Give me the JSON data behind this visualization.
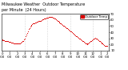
{
  "title_line1": "Milwaukee Weather  Outdoor Temperature",
  "title_line2": "per Minute  (24 Hours)",
  "x_values": [
    0,
    1,
    2,
    3,
    4,
    5,
    6,
    7,
    8,
    9,
    10,
    11,
    12,
    13,
    14,
    15,
    16,
    17,
    18,
    19,
    20,
    21,
    22,
    23,
    24,
    25,
    26,
    27,
    28,
    29,
    30,
    31,
    32,
    33,
    34,
    35,
    36,
    37,
    38,
    39,
    40,
    41,
    42,
    43,
    44,
    45,
    46,
    47,
    48,
    49,
    50,
    51,
    52,
    53,
    54,
    55,
    56,
    57,
    58,
    59,
    60,
    61,
    62,
    63,
    64,
    65,
    66,
    67,
    68,
    69,
    70,
    71,
    72,
    73,
    74,
    75,
    76,
    77,
    78,
    79,
    80,
    81,
    82,
    83,
    84,
    85,
    86,
    87,
    88,
    89,
    90,
    91,
    92,
    93,
    94,
    95,
    96,
    97,
    98,
    99,
    100,
    101,
    102,
    103,
    104,
    105,
    106,
    107,
    108,
    109,
    110,
    111,
    112,
    113,
    114,
    115,
    116,
    117,
    118,
    119,
    120,
    121,
    122,
    123,
    124,
    125,
    126,
    127,
    128,
    129,
    130,
    131,
    132,
    133,
    134,
    135,
    136,
    137,
    138,
    139
  ],
  "y_values": [
    28,
    27,
    27,
    27,
    26,
    26,
    25,
    25,
    25,
    24,
    24,
    24,
    23,
    23,
    23,
    22,
    22,
    22,
    22,
    21,
    21,
    21,
    21,
    22,
    22,
    23,
    24,
    25,
    26,
    28,
    30,
    33,
    36,
    39,
    42,
    45,
    47,
    49,
    51,
    52,
    53,
    54,
    55,
    55,
    56,
    56,
    57,
    57,
    58,
    58,
    59,
    59,
    60,
    61,
    61,
    62,
    62,
    63,
    63,
    64,
    64,
    64,
    65,
    65,
    65,
    65,
    65,
    64,
    64,
    63,
    62,
    61,
    60,
    59,
    58,
    57,
    56,
    55,
    54,
    53,
    52,
    51,
    50,
    49,
    48,
    47,
    46,
    45,
    44,
    43,
    42,
    41,
    40,
    39,
    38,
    37,
    36,
    35,
    34,
    33,
    32,
    31,
    30,
    29,
    28,
    27,
    26,
    25,
    24,
    23,
    22,
    21,
    20,
    21,
    22,
    23,
    24,
    25,
    26,
    27,
    28,
    29,
    30,
    31,
    30,
    29,
    28,
    27,
    26,
    25,
    24,
    23,
    22,
    21,
    20,
    19,
    18,
    18,
    17,
    17
  ],
  "dot_color": "#dd0000",
  "bg_color": "#ffffff",
  "legend_label": "Outdoor Temp",
  "legend_color": "#dd0000",
  "ylim_min": 10,
  "ylim_max": 70,
  "vline_positions": [
    30,
    60,
    90,
    120
  ],
  "title_fontsize": 3.5,
  "tick_fontsize": 2.8,
  "dot_size": 0.5,
  "yticks": [
    10,
    20,
    30,
    40,
    50,
    60,
    70
  ],
  "x_tick_positions": [
    0,
    10,
    20,
    30,
    40,
    50,
    60,
    70,
    80,
    90,
    100,
    110,
    120,
    130,
    139
  ],
  "x_tick_labels": [
    "0\n:00",
    "1\n:00",
    "2\n:00",
    "3\n:00",
    "4\n:00",
    "5\n:00",
    "6\n:00",
    "7\n:00",
    "8\n:00",
    "9\n:00",
    "10\n:00",
    "11\n:00",
    "12\n:00",
    "1\n:00",
    "2\n:00"
  ]
}
